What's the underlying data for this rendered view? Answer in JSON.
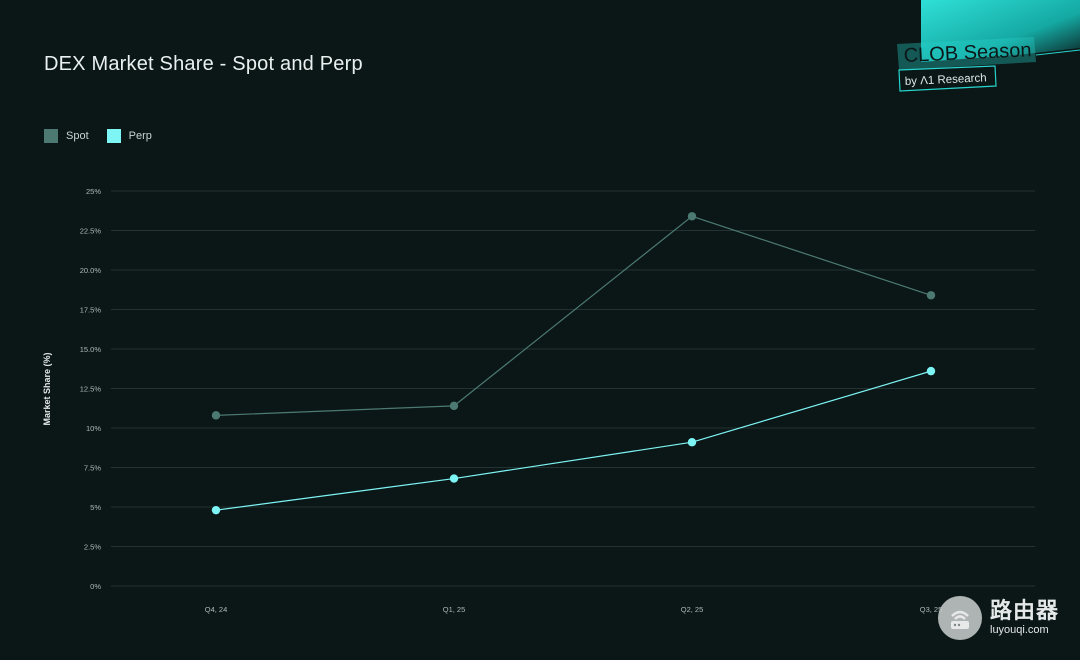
{
  "title": "DEX Market Share - Spot and Perp",
  "brand": {
    "name": "CLOB Season",
    "byline": "by Λ1 Research",
    "accent": "#1fd6cf"
  },
  "legend": [
    {
      "label": "Spot",
      "color": "#4c7a72"
    },
    {
      "label": "Perp",
      "color": "#7ef5f5"
    }
  ],
  "chart_data": {
    "type": "line",
    "title": "DEX Market Share - Spot and Perp",
    "xlabel": "",
    "ylabel": "Market Share (%)",
    "categories": [
      "Q4, 24",
      "Q1, 25",
      "Q2, 25",
      "Q3, 25"
    ],
    "ylim": [
      0,
      25
    ],
    "yticks": [
      0,
      2.5,
      5,
      7.5,
      10,
      12.5,
      15,
      17.5,
      20,
      22.5,
      25
    ],
    "ytick_labels": [
      "0%",
      "2.5%",
      "5%",
      "7.5%",
      "10%",
      "12.5%",
      "15.0%",
      "17.5%",
      "20.0%",
      "22.5%",
      "25%"
    ],
    "grid": true,
    "legend_position": "top-left",
    "series": [
      {
        "name": "Spot",
        "color": "#4c7a72",
        "values": [
          10.8,
          11.4,
          23.4,
          18.4
        ]
      },
      {
        "name": "Perp",
        "color": "#7ef5f5",
        "values": [
          4.8,
          6.8,
          9.1,
          13.6
        ]
      }
    ]
  },
  "watermark": {
    "cn": "路由器",
    "url": "luyouqi.com"
  }
}
